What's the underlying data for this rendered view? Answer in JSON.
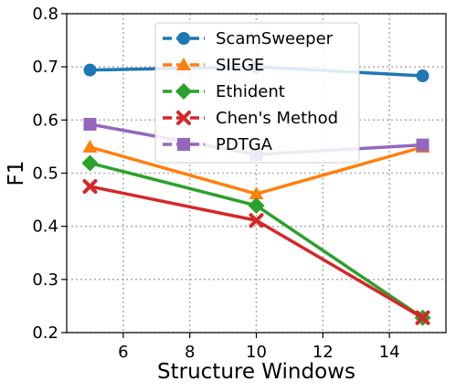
{
  "chart_data": {
    "type": "line",
    "xlabel": "Structure Windows",
    "ylabel": "F1",
    "xlim": [
      4.3,
      15.7
    ],
    "ylim": [
      0.2,
      0.8
    ],
    "xticks": [
      6,
      8,
      10,
      12,
      14
    ],
    "yticks": [
      0.2,
      0.3,
      0.4,
      0.5,
      0.6,
      0.7,
      0.8
    ],
    "xtick_labels": [
      "6",
      "8",
      "10",
      "12",
      "14"
    ],
    "ytick_labels": [
      "0.2",
      "0.3",
      "0.4",
      "0.5",
      "0.6",
      "0.7",
      "0.8"
    ],
    "grid": true,
    "legend_position": "top-center",
    "x": [
      5,
      10,
      15
    ],
    "series": [
      {
        "name": "ScamSweeper",
        "values": [
          0.694,
          0.7,
          0.683
        ],
        "color": "#1f77b4",
        "marker": "circle"
      },
      {
        "name": "SIEGE",
        "values": [
          0.549,
          0.461,
          0.549
        ],
        "color": "#ff7f0e",
        "marker": "triangle"
      },
      {
        "name": "Ethident",
        "values": [
          0.519,
          0.439,
          0.228
        ],
        "color": "#2ca02c",
        "marker": "diamond"
      },
      {
        "name": "Chen's Method",
        "values": [
          0.475,
          0.411,
          0.228
        ],
        "color": "#d62728",
        "marker": "x"
      },
      {
        "name": "PDTGA",
        "values": [
          0.592,
          0.535,
          0.553
        ],
        "color": "#9467bd",
        "marker": "square"
      }
    ]
  }
}
